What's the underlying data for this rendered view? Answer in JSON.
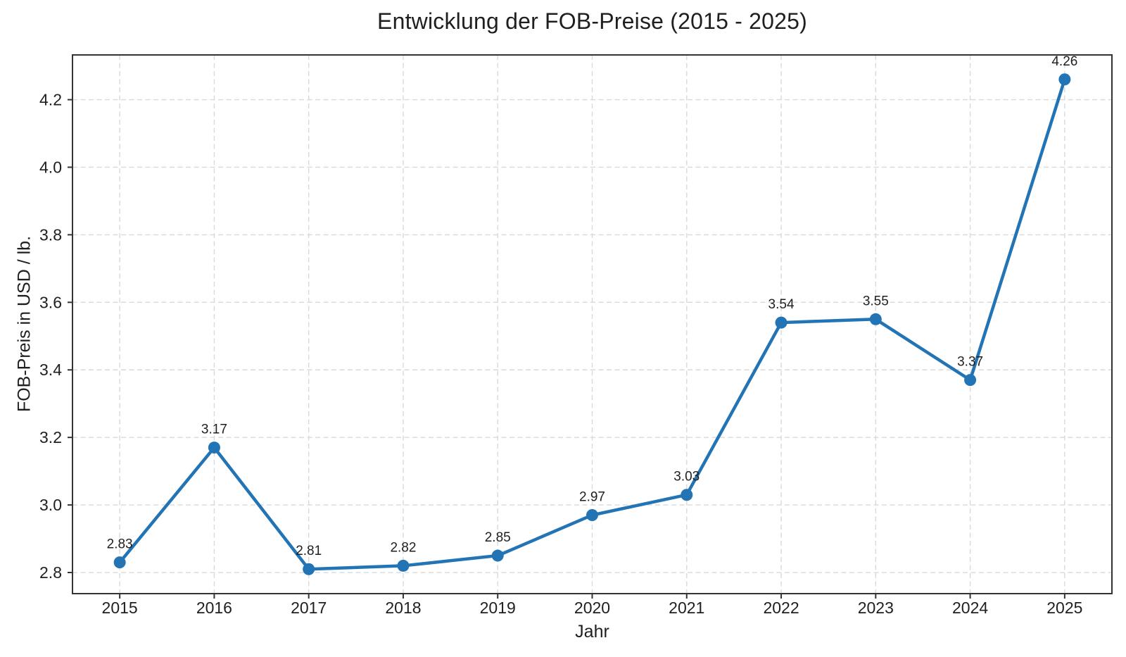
{
  "chart_data": {
    "type": "line",
    "title": "Entwicklung der FOB-Preise (2015 - 2025)",
    "xlabel": "Jahr",
    "ylabel": "FOB-Preis in USD / lb.",
    "x": [
      2015,
      2016,
      2017,
      2018,
      2019,
      2020,
      2021,
      2022,
      2023,
      2024,
      2025
    ],
    "series": [
      {
        "name": "FOB-Preis",
        "values": [
          2.83,
          3.17,
          2.81,
          2.82,
          2.85,
          2.97,
          3.03,
          3.54,
          3.55,
          3.37,
          4.26
        ]
      }
    ],
    "point_labels": [
      "2.83",
      "3.17",
      "2.81",
      "2.82",
      "2.85",
      "2.97",
      "3.03",
      "3.54",
      "3.55",
      "3.37",
      "4.26"
    ],
    "xticks": [
      2015,
      2016,
      2017,
      2018,
      2019,
      2020,
      2021,
      2022,
      2023,
      2024,
      2025
    ],
    "xtick_labels": [
      "2015",
      "2016",
      "2017",
      "2018",
      "2019",
      "2020",
      "2021",
      "2022",
      "2023",
      "2024",
      "2025"
    ],
    "yticks": [
      2.8,
      3.0,
      3.2,
      3.4,
      3.6,
      3.8,
      4.0,
      4.2
    ],
    "ytick_labels": [
      "2.8",
      "3.0",
      "3.2",
      "3.4",
      "3.6",
      "3.8",
      "4.0",
      "4.2"
    ],
    "xlim": [
      2014.5,
      2025.5
    ],
    "ylim": [
      2.7375,
      4.3325
    ],
    "grid": true,
    "grid_style": "dashed",
    "legend": false,
    "marker": "circle",
    "colors": {
      "line": "#2274b5",
      "marker": "#2274b5",
      "grid": "#d9d9d9",
      "spine": "#333333",
      "text": "#1f1f1f",
      "background": "#ffffff"
    }
  }
}
